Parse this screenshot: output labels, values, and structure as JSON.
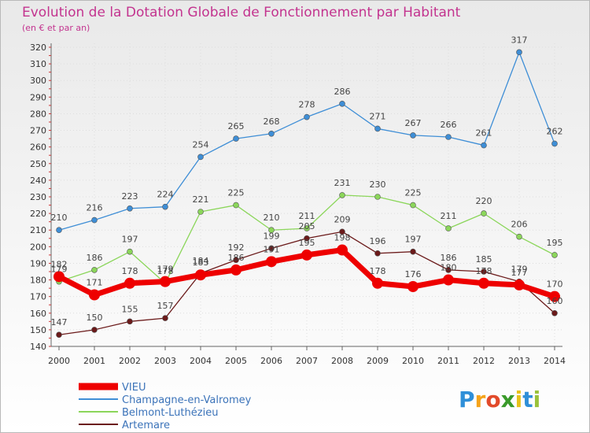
{
  "chart_data": {
    "type": "line",
    "title": "Evolution de la Dotation Globale de Fonctionnement par Habitant",
    "subtitle": "(en € et par an)",
    "xlabel": "",
    "ylabel": "",
    "ylim": [
      140,
      320
    ],
    "yticks": [
      140,
      150,
      160,
      170,
      180,
      190,
      200,
      210,
      220,
      230,
      240,
      250,
      260,
      270,
      280,
      290,
      300,
      310,
      320
    ],
    "grid": true,
    "legend_position": "bottom-left",
    "x": [
      "2000",
      "2001",
      "2002",
      "2003",
      "2004",
      "2005",
      "2006",
      "2007",
      "2008",
      "2009",
      "2010",
      "2011",
      "2012",
      "2013",
      "2014"
    ],
    "series": [
      {
        "name": "VIEU",
        "color": "#ee0000",
        "values": [
          182,
          171,
          178,
          179,
          183,
          186,
          191,
          195,
          198,
          178,
          176,
          180,
          178,
          177,
          170
        ]
      },
      {
        "name": "Champagne-en-Valromey",
        "color": "#3e8ed6",
        "values": [
          210,
          216,
          223,
          224,
          254,
          265,
          268,
          278,
          286,
          271,
          267,
          266,
          261,
          317,
          262
        ]
      },
      {
        "name": "Belmont-Luthézieu",
        "color": "#8bd65a",
        "values": [
          179,
          186,
          197,
          178,
          221,
          225,
          210,
          211,
          231,
          230,
          225,
          211,
          220,
          206,
          195
        ]
      },
      {
        "name": "Artemare",
        "color": "#6b1a1a",
        "values": [
          147,
          150,
          155,
          157,
          184,
          192,
          199,
          205,
          209,
          196,
          197,
          186,
          185,
          179,
          160
        ]
      }
    ]
  },
  "logo": {
    "letters": [
      "P",
      "r",
      "o",
      "x",
      "i",
      "t",
      "i"
    ],
    "colors": [
      "#2f8fd8",
      "#f5a31a",
      "#e24a2a",
      "#3a9a2a",
      "#e8c21a",
      "#2f8fd8",
      "#9ac23a"
    ]
  }
}
